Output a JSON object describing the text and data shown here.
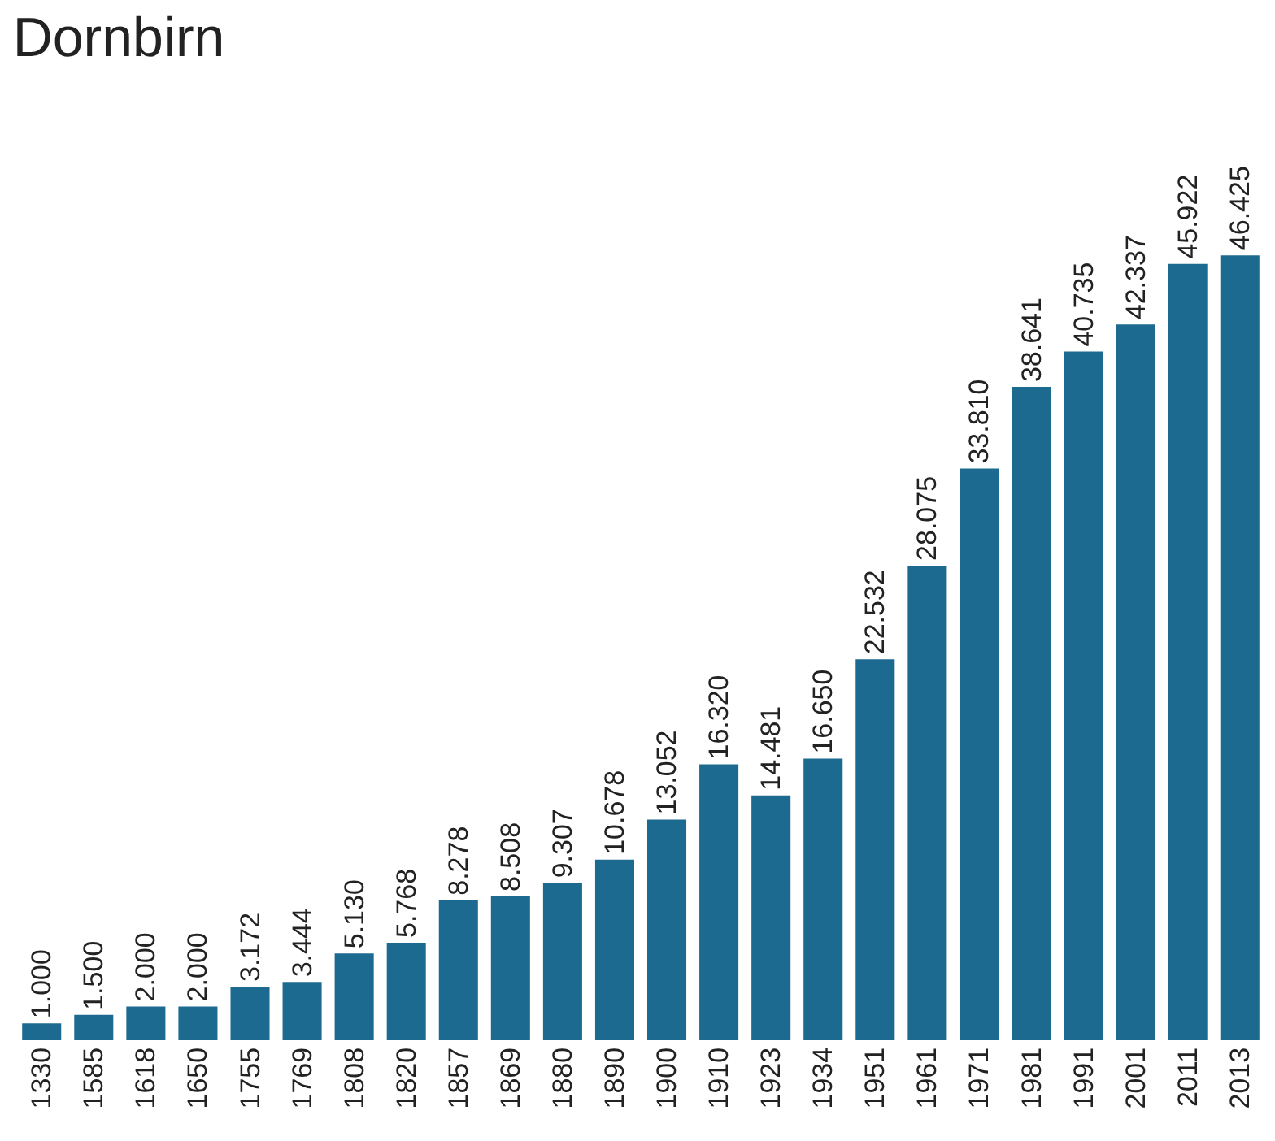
{
  "chart_data": {
    "type": "bar",
    "title": "Dornbirn",
    "categories": [
      "1330",
      "1585",
      "1618",
      "1650",
      "1755",
      "1769",
      "1808",
      "1820",
      "1857",
      "1869",
      "1880",
      "1890",
      "1900",
      "1910",
      "1923",
      "1934",
      "1951",
      "1961",
      "1971",
      "1981",
      "1991",
      "2001",
      "2011",
      "2013"
    ],
    "values": [
      1000,
      1500,
      2000,
      2000,
      3172,
      3444,
      5130,
      5768,
      8278,
      8508,
      9307,
      10678,
      13052,
      16320,
      14481,
      16650,
      22532,
      28075,
      33810,
      38641,
      40735,
      42337,
      45922,
      46425
    ],
    "value_labels": [
      "1.000",
      "1.500",
      "2.000",
      "2.000",
      "3.172",
      "3.444",
      "5.130",
      "5.768",
      "8.278",
      "8.508",
      "9.307",
      "10.678",
      "13.052",
      "16.320",
      "14.481",
      "16.650",
      "22.532",
      "28.075",
      "33.810",
      "38.641",
      "40.735",
      "42.337",
      "45.922",
      "46.425"
    ],
    "color": "#1d6a90",
    "grid": false,
    "legend": false
  }
}
